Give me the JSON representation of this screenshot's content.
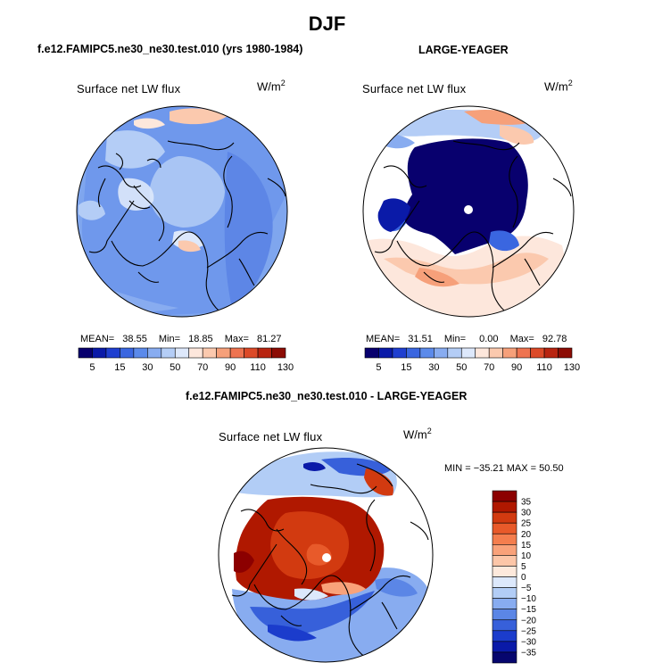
{
  "season_title": "DJF",
  "panels": [
    {
      "title": "f.e12.FAMIPC5.ne30_ne30.test.010 (yrs 1980-1984)",
      "field_label": "Surface net LW flux",
      "units": "W/m",
      "units_sup": "2",
      "mean_label": "MEAN=",
      "mean": "38.55",
      "min_label": "Min=",
      "min": "18.85",
      "max_label": "Max=",
      "max": "81.27"
    },
    {
      "title": "LARGE-YEAGER",
      "field_label": "Surface net LW flux",
      "units": "W/m",
      "units_sup": "2",
      "mean_label": "MEAN=",
      "mean": "31.51",
      "min_label": "Min=",
      "min": "0.00",
      "max_label": "Max=",
      "max": "92.78"
    },
    {
      "title": "f.e12.FAMIPC5.ne30_ne30.test.010 - LARGE-YEAGER",
      "field_label": "Surface net LW flux",
      "units": "W/m",
      "units_sup": "2",
      "minmax_text": "MIN = −35.21  MAX =  50.50"
    }
  ],
  "colorbar_abs": {
    "colors": [
      "#08006e",
      "#0a1aa8",
      "#1f3fd0",
      "#3a66e0",
      "#5b8aea",
      "#88acf0",
      "#b4cdf6",
      "#dde8fb",
      "#fde7dc",
      "#fbc9ae",
      "#f6a07a",
      "#ee7350",
      "#dc4a28",
      "#b82410",
      "#8c0c04"
    ],
    "tick_labels": [
      "5",
      "15",
      "30",
      "50",
      "70",
      "90",
      "110",
      "130"
    ]
  },
  "colorbar_diff": {
    "colors": [
      "#8c0000",
      "#b01800",
      "#d23a10",
      "#e85a2a",
      "#f47e4e",
      "#f9a27a",
      "#fcc6a8",
      "#fde9dc",
      "#dce8fb",
      "#b2cdf6",
      "#88acf0",
      "#5b86e6",
      "#3760da",
      "#1b3ccc",
      "#0a1aa8",
      "#06066e"
    ],
    "tick_labels": [
      "35",
      "30",
      "25",
      "20",
      "15",
      "10",
      "5",
      "0",
      "−5",
      "−10",
      "−15",
      "−20",
      "−25",
      "−30",
      "−35"
    ]
  },
  "chart_data": [
    {
      "type": "heatmap",
      "title": "f.e12.FAMIPC5.ne30_ne30.test.010 (yrs 1980-1984)",
      "subtitle": "Surface net LW flux",
      "units": "W/m2",
      "mean": 38.55,
      "min": 18.85,
      "max": 81.27,
      "contour_levels": [
        5,
        10,
        15,
        20,
        25,
        30,
        40,
        50,
        60,
        70,
        80,
        90,
        100,
        110,
        120,
        130
      ]
    },
    {
      "type": "heatmap",
      "title": "LARGE-YEAGER",
      "subtitle": "Surface net LW flux",
      "units": "W/m2",
      "mean": 31.51,
      "min": 0.0,
      "max": 92.78,
      "contour_levels": [
        5,
        10,
        15,
        20,
        25,
        30,
        40,
        50,
        60,
        70,
        80,
        90,
        100,
        110,
        120,
        130
      ]
    },
    {
      "type": "heatmap",
      "title": "f.e12.FAMIPC5.ne30_ne30.test.010 - LARGE-YEAGER",
      "subtitle": "Surface net LW flux",
      "units": "W/m2",
      "min": -35.21,
      "max": 50.5,
      "contour_levels": [
        -35,
        -30,
        -25,
        -20,
        -15,
        -10,
        -5,
        0,
        5,
        10,
        15,
        20,
        25,
        30,
        35
      ]
    }
  ]
}
